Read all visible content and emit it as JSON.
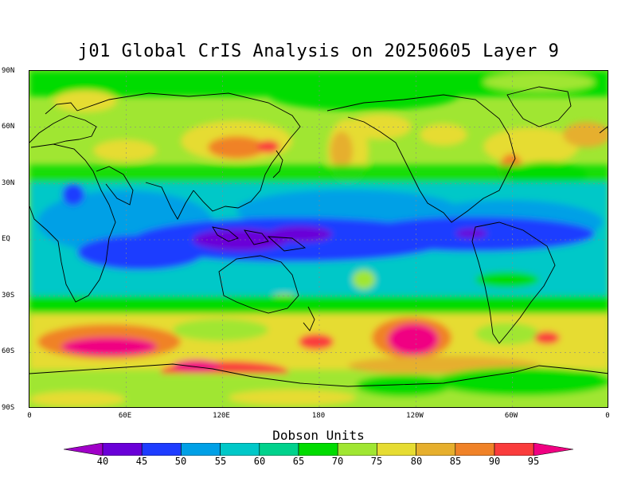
{
  "title": "j01 Global CrIS Analysis on 20250605 Layer 9",
  "lat_labels": [
    "90N",
    "60N",
    "30N",
    "EQ",
    "30S",
    "60S",
    "90S"
  ],
  "lon_labels": [
    "0",
    "60E",
    "120E",
    "180",
    "120W",
    "60W",
    "0"
  ],
  "colorbar": {
    "title": "Dobson Units",
    "labels": [
      "40",
      "45",
      "50",
      "55",
      "60",
      "65",
      "70",
      "75",
      "80",
      "85",
      "90",
      "95"
    ],
    "colors": [
      "#a000c8",
      "#6a00d8",
      "#1e3cff",
      "#00a0e6",
      "#00c8c8",
      "#00d28c",
      "#00dc00",
      "#a0e632",
      "#e6dc32",
      "#e6af2d",
      "#f08228",
      "#fa3c3c",
      "#f00082"
    ]
  },
  "map_data": {
    "type": "contour-filled",
    "grid": "dotted",
    "projection": "equirectangular",
    "lon_range": [
      0,
      360
    ],
    "lat_range": [
      -90,
      90
    ],
    "unit": "Dobson Units"
  }
}
